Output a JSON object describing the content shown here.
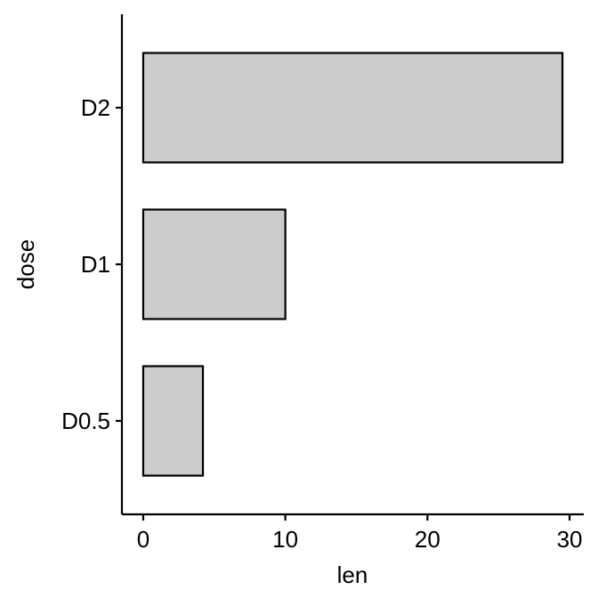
{
  "chart_data": {
    "type": "bar",
    "orientation": "horizontal",
    "categories": [
      "D0.5",
      "D1",
      "D2"
    ],
    "values": [
      4.2,
      10,
      29.5
    ],
    "xlabel": "len",
    "ylabel": "dose",
    "xlim": [
      -1.5,
      31
    ],
    "xticks": [
      0,
      10,
      20,
      30
    ],
    "grid": false,
    "legend": "none",
    "bar_fill": "#cccccc",
    "bar_stroke": "#000000"
  }
}
